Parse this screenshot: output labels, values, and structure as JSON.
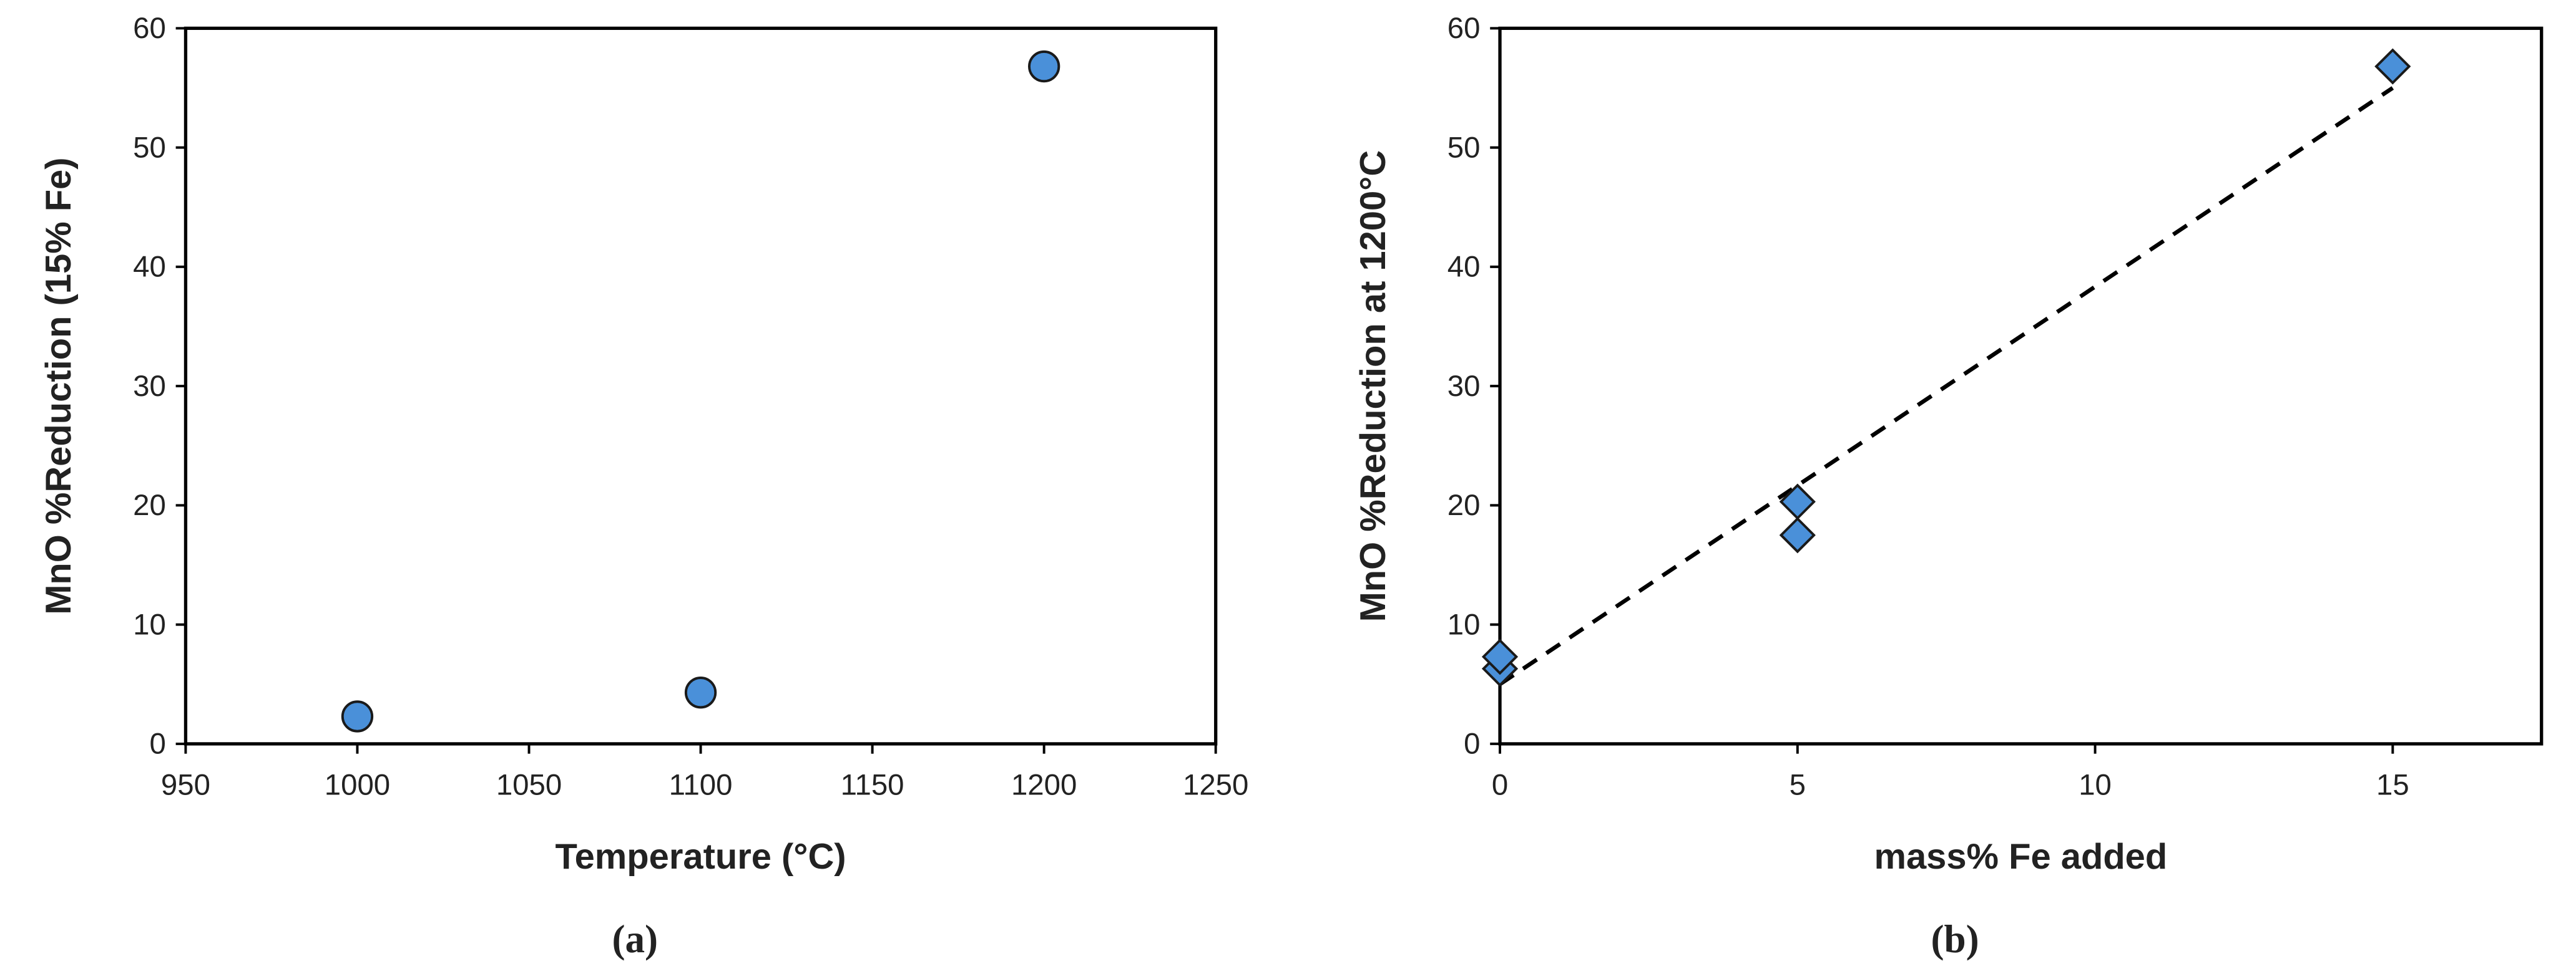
{
  "chart_data": [
    {
      "type": "scatter",
      "marker": "circle",
      "color": "#4a90d9",
      "x_label": "Temperature (°C)",
      "y_label": "MnO %Reduction (15% Fe)",
      "caption": "(a)",
      "series": [
        {
          "x": [
            1000,
            1100,
            1200
          ],
          "values": [
            2.3,
            4.3,
            56.8
          ]
        }
      ],
      "xlim": [
        950,
        1250
      ],
      "xticks": [
        950,
        1000,
        1050,
        1100,
        1150,
        1200,
        1250
      ],
      "ylim": [
        0,
        60
      ],
      "yticks": [
        0,
        10,
        20,
        30,
        40,
        50,
        60
      ]
    },
    {
      "type": "scatter",
      "marker": "diamond",
      "color": "#4a90d9",
      "x_label": "mass% Fe added",
      "y_label": "MnO %Reduction at 1200°C",
      "caption": "(b)",
      "series": [
        {
          "x": [
            0,
            0,
            5,
            5,
            15
          ],
          "values": [
            6.3,
            7.3,
            20.3,
            17.5,
            56.8
          ]
        }
      ],
      "trendline": {
        "x": [
          0,
          15
        ],
        "values": [
          5,
          55
        ]
      },
      "xlim": [
        0,
        17.5
      ],
      "xticks": [
        0,
        5,
        10,
        15
      ],
      "ylim": [
        0,
        60
      ],
      "yticks": [
        0,
        10,
        20,
        30,
        40,
        50,
        60
      ]
    }
  ]
}
